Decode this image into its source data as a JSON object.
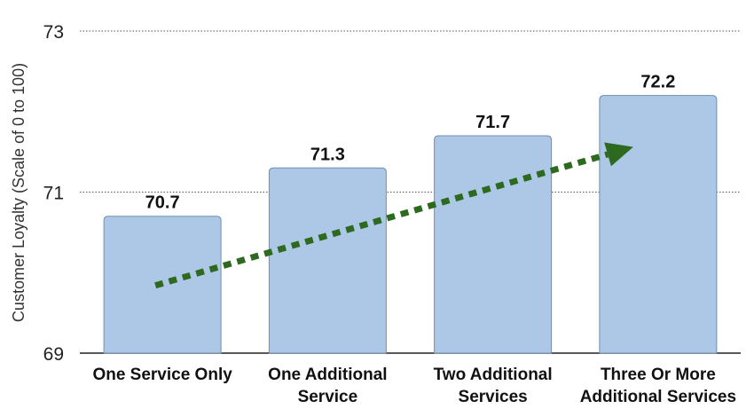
{
  "chart_data": {
    "type": "bar",
    "categories": [
      [
        "One Service Only"
      ],
      [
        "One Additional",
        "Service"
      ],
      [
        "Two Additional",
        "Services"
      ],
      [
        "Three Or More",
        "Additional Services"
      ]
    ],
    "values": [
      70.7,
      71.3,
      71.7,
      72.2
    ],
    "data_labels": [
      "70.7",
      "71.3",
      "71.7",
      "72.2"
    ],
    "ylabel": "Customer Loyalty (Scale of 0 to 100)",
    "ylim": [
      69,
      73
    ],
    "yticks": [
      69,
      71,
      73
    ],
    "ytick_labels": [
      "69",
      "71",
      "73"
    ],
    "grid": true,
    "trend_arrow": true,
    "colors": {
      "bar_fill": "#adc8e6",
      "bar_stroke": "#6f8fb2",
      "trend": "#2d6a1f",
      "grid": "#555555",
      "axis": "#222222"
    }
  }
}
